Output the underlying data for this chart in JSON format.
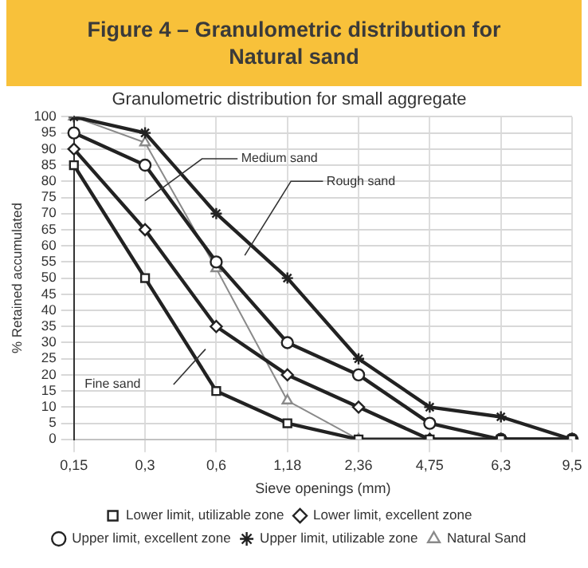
{
  "chart_data": {
    "type": "line",
    "title": "Figure 4 – Granulometric distribution for Natural sand",
    "subtitle": "Granulometric distribution for small aggregate",
    "xlabel": "Sieve openings (mm)",
    "ylabel": "% Retained accumulated",
    "categories": [
      "0,15",
      "0,3",
      "0,6",
      "1,18",
      "2,36",
      "4,75",
      "6,3",
      "9,5"
    ],
    "series": [
      {
        "name": "Lower limit, utilizable zone",
        "color": "#222222",
        "marker": "square",
        "values": [
          85,
          50,
          15,
          5,
          0,
          0,
          0,
          0
        ]
      },
      {
        "name": "Lower limit, excellent zone",
        "color": "#222222",
        "marker": "diamond",
        "values": [
          90,
          65,
          35,
          20,
          10,
          0,
          0,
          0
        ]
      },
      {
        "name": "Upper limit, excellent zone",
        "color": "#222222",
        "marker": "circle",
        "values": [
          95,
          85,
          55,
          30,
          20,
          5,
          0,
          0
        ]
      },
      {
        "name": "Upper limit, utilizable zone",
        "color": "#222222",
        "marker": "cross",
        "values": [
          100,
          95,
          70,
          50,
          25,
          10,
          7,
          0
        ]
      },
      {
        "name": "Natural Sand",
        "color": "#8a8a8a",
        "marker": "triangle",
        "values": [
          100,
          92,
          53,
          12,
          0,
          0,
          0,
          0
        ]
      }
    ],
    "ylim": [
      0,
      100
    ],
    "yticks": [
      0,
      5,
      10,
      15,
      20,
      25,
      30,
      35,
      40,
      45,
      50,
      55,
      60,
      65,
      70,
      75,
      80,
      85,
      90,
      95,
      100
    ],
    "grid": true,
    "legend": "bottom",
    "line_style": "solid",
    "annotations": [
      "Medium sand",
      "Rough sand",
      "Fine sand"
    ]
  }
}
